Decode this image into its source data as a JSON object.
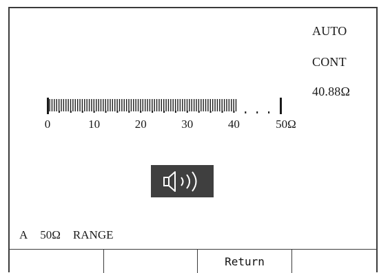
{
  "status": {
    "mode": "AUTO",
    "function": "CONT",
    "reading": "40.88Ω"
  },
  "bargraph": {
    "ticks": [
      "0",
      "10",
      "20",
      "30",
      "40",
      "50Ω"
    ],
    "value": 40.88,
    "max": 50
  },
  "icons": {
    "beeper": "speaker-sound-icon"
  },
  "range": {
    "channel": "A",
    "value": "50Ω",
    "label": "RANGE"
  },
  "softkeys": [
    "",
    "",
    "Return",
    ""
  ],
  "colors": {
    "background": "#ffffff",
    "foreground": "#1a1a1a",
    "icon_bg": "#3f3f3f"
  }
}
